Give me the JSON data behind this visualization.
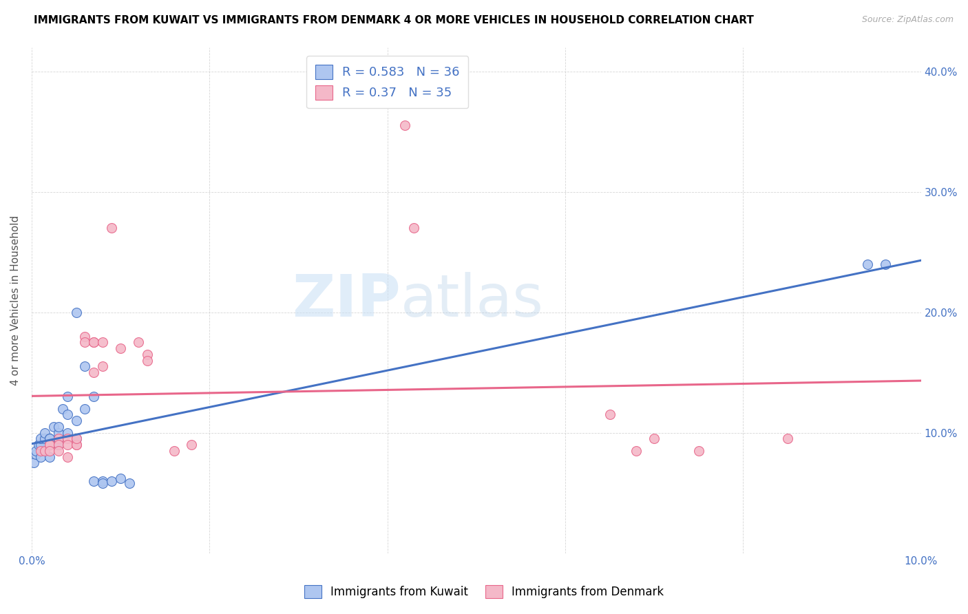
{
  "title": "IMMIGRANTS FROM KUWAIT VS IMMIGRANTS FROM DENMARK 4 OR MORE VEHICLES IN HOUSEHOLD CORRELATION CHART",
  "source": "Source: ZipAtlas.com",
  "ylabel": "4 or more Vehicles in Household",
  "xlim": [
    0.0,
    0.1
  ],
  "ylim": [
    0.0,
    0.42
  ],
  "xticks": [
    0.0,
    0.02,
    0.04,
    0.06,
    0.08,
    0.1
  ],
  "yticks": [
    0.0,
    0.1,
    0.2,
    0.3,
    0.4
  ],
  "kuwait_color": "#aec6f0",
  "denmark_color": "#f4b8c8",
  "kuwait_line_color": "#4472c4",
  "denmark_line_color": "#e8668a",
  "R_kuwait": 0.583,
  "N_kuwait": 36,
  "R_denmark": 0.37,
  "N_denmark": 35,
  "watermark_zip": "ZIP",
  "watermark_atlas": "atlas",
  "kuwait_x": [
    0.0002,
    0.0005,
    0.0005,
    0.0008,
    0.001,
    0.001,
    0.001,
    0.0015,
    0.0015,
    0.002,
    0.002,
    0.002,
    0.002,
    0.0025,
    0.003,
    0.003,
    0.003,
    0.003,
    0.0035,
    0.004,
    0.004,
    0.004,
    0.005,
    0.005,
    0.005,
    0.006,
    0.006,
    0.007,
    0.007,
    0.008,
    0.008,
    0.009,
    0.01,
    0.011,
    0.094,
    0.096
  ],
  "kuwait_y": [
    0.075,
    0.082,
    0.085,
    0.09,
    0.09,
    0.095,
    0.08,
    0.095,
    0.1,
    0.095,
    0.095,
    0.09,
    0.08,
    0.105,
    0.095,
    0.09,
    0.1,
    0.105,
    0.12,
    0.13,
    0.115,
    0.1,
    0.2,
    0.11,
    0.095,
    0.155,
    0.12,
    0.13,
    0.06,
    0.06,
    0.058,
    0.06,
    0.062,
    0.058,
    0.24,
    0.24
  ],
  "denmark_x": [
    0.001,
    0.0015,
    0.002,
    0.002,
    0.002,
    0.003,
    0.003,
    0.003,
    0.004,
    0.004,
    0.004,
    0.005,
    0.005,
    0.005,
    0.006,
    0.006,
    0.007,
    0.007,
    0.007,
    0.008,
    0.008,
    0.009,
    0.01,
    0.012,
    0.013,
    0.013,
    0.016,
    0.018,
    0.042,
    0.043,
    0.065,
    0.068,
    0.07,
    0.075,
    0.085
  ],
  "denmark_y": [
    0.085,
    0.085,
    0.09,
    0.09,
    0.085,
    0.095,
    0.09,
    0.085,
    0.095,
    0.08,
    0.09,
    0.09,
    0.09,
    0.095,
    0.18,
    0.175,
    0.175,
    0.175,
    0.15,
    0.175,
    0.155,
    0.27,
    0.17,
    0.175,
    0.165,
    0.16,
    0.085,
    0.09,
    0.355,
    0.27,
    0.115,
    0.085,
    0.095,
    0.085,
    0.095
  ]
}
